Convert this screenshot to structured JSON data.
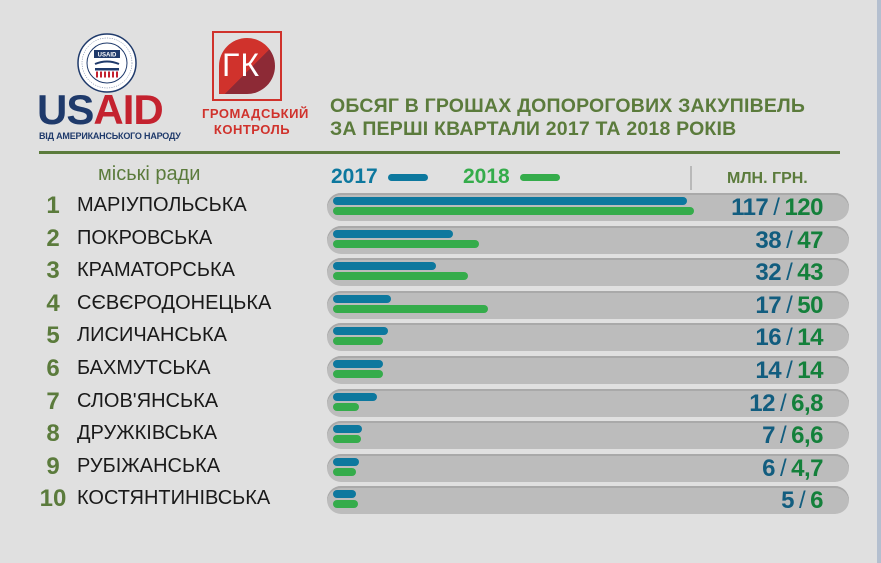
{
  "logos": {
    "usaid": {
      "word_part1": "US",
      "word_part2": "AID",
      "seal_label": "USAID",
      "tagline": "ВІД АМЕРИКАНСЬКОГО НАРОДУ"
    },
    "gk": {
      "mark": "ГК",
      "name_line1": "ГРОМАДСЬКИЙ",
      "name_line2": "КОНТРОЛЬ"
    }
  },
  "header": {
    "title_line1": "ОБСЯГ В ГРОШАХ ДОПОРОГОВИХ ЗАКУПІВЕЛЬ",
    "title_line2": "ЗА ПЕРШІ КВАРТАЛИ 2017 ТА 2018 РОКІВ"
  },
  "columns": {
    "category_header": "міські ради",
    "unit": "МЛН. ГРН."
  },
  "legend": [
    {
      "label": "2017",
      "color": "#0d789e"
    },
    {
      "label": "2018",
      "color": "#35ac4b"
    }
  ],
  "colors": {
    "accent_green_text": "#5b7b3c",
    "bar_2017": "#0d789e",
    "bar_2018": "#35ac4b",
    "value_2017": "#125d7f",
    "value_2018": "#14803b",
    "track": "#bcbcbc",
    "background": "#e0e0e0"
  },
  "chart_data": {
    "type": "bar",
    "orientation": "horizontal",
    "title": "ОБСЯГ В ГРОШАХ ДОПОРОГОВИХ ЗАКУПІВЕЛЬ ЗА ПЕРШІ КВАРТАЛИ 2017 ТА 2018 РОКІВ",
    "xlabel": "",
    "ylabel": "міські ради",
    "unit": "МЛН. ГРН.",
    "legend_position": "top",
    "grid": false,
    "xlim": [
      0,
      120
    ],
    "categories": [
      "МАРІУПОЛЬСЬКА",
      "ПОКРОВСЬКА",
      "КРАМАТОРСЬКА",
      "СЄВЄРОДОНЕЦЬКА",
      "ЛИСИЧАНСЬКА",
      "БАХМУТСЬКА",
      "СЛОВ'ЯНСЬКА",
      "ДРУЖКІВСЬКА",
      "РУБІЖАНСЬКА",
      "КОСТЯНТИНІВСЬКА"
    ],
    "series": [
      {
        "name": "2017",
        "values": [
          117,
          38,
          32,
          17,
          16,
          14,
          12,
          7,
          6,
          5
        ]
      },
      {
        "name": "2018",
        "values": [
          120,
          47,
          43,
          50,
          14,
          14,
          6.8,
          6.6,
          4.7,
          6
        ]
      }
    ]
  },
  "rows": [
    {
      "rank": "1",
      "name": "МАРІУПОЛЬСЬКА",
      "v2017": "117",
      "v2018": "120",
      "w2017": 354,
      "w2018": 361
    },
    {
      "rank": "2",
      "name": "ПОКРОВСЬКА",
      "v2017": "38",
      "v2018": "47",
      "w2017": 120,
      "w2018": 146
    },
    {
      "rank": "3",
      "name": "КРАМАТОРСЬКА",
      "v2017": "32",
      "v2018": "43",
      "w2017": 103,
      "w2018": 135
    },
    {
      "rank": "4",
      "name": "СЄВЄРОДОНЕЦЬКА",
      "v2017": "17",
      "v2018": "50",
      "w2017": 58,
      "w2018": 155
    },
    {
      "rank": "5",
      "name": "ЛИСИЧАНСЬКА",
      "v2017": "16",
      "v2018": "14",
      "w2017": 55,
      "w2018": 50
    },
    {
      "rank": "6",
      "name": "БАХМУТСЬКА",
      "v2017": "14",
      "v2018": "14",
      "w2017": 50,
      "w2018": 50
    },
    {
      "rank": "7",
      "name": "СЛОВ'ЯНСЬКА",
      "v2017": "12",
      "v2018": "6,8",
      "w2017": 44,
      "w2018": 26
    },
    {
      "rank": "8",
      "name": "ДРУЖКІВСЬКА",
      "v2017": "7",
      "v2018": "6,6",
      "w2017": 29,
      "w2018": 28
    },
    {
      "rank": "9",
      "name": "РУБІЖАНСЬКА",
      "v2017": "6",
      "v2018": "4,7",
      "w2017": 26,
      "w2018": 23
    },
    {
      "rank": "10",
      "name": "КОСТЯНТИНІВСЬКА",
      "v2017": "5",
      "v2018": "6",
      "w2017": 23,
      "w2018": 25
    }
  ],
  "value_separator": "/"
}
